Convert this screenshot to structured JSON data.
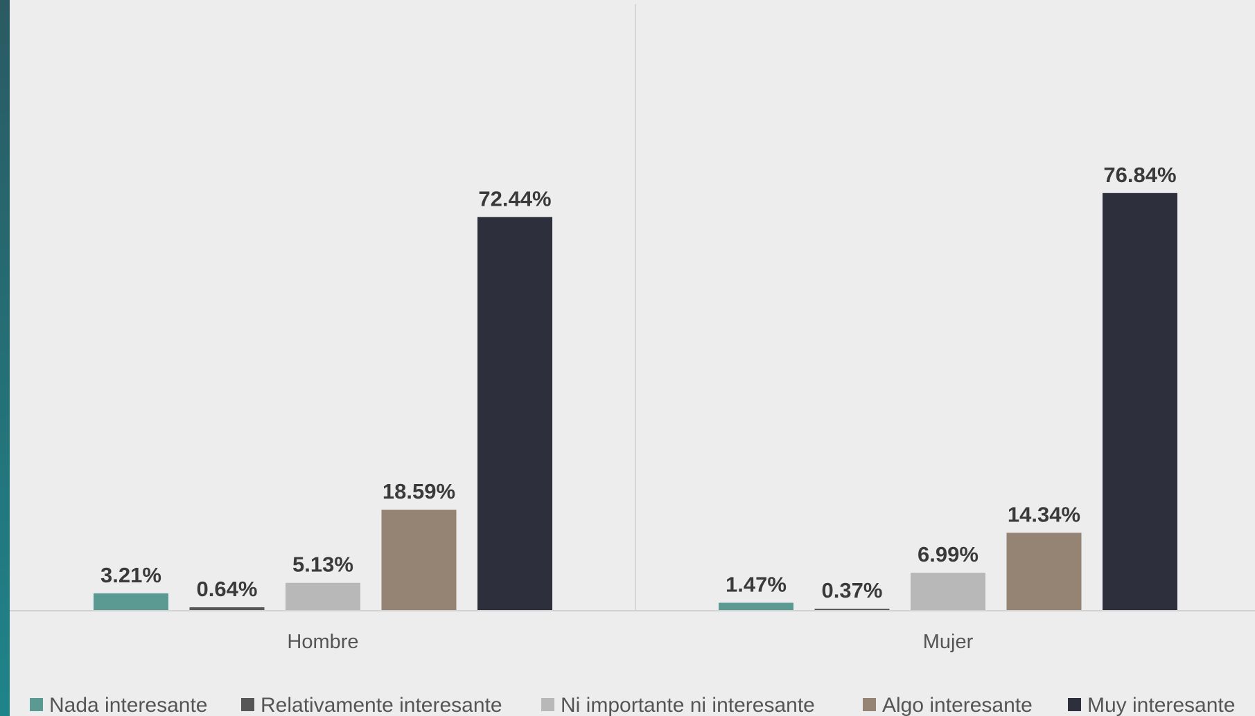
{
  "chart_data": {
    "type": "bar",
    "categories": [
      "Hombre",
      "Mujer"
    ],
    "series": [
      {
        "name": "Nada interesante",
        "color": "#5a9a93",
        "values": [
          3.21,
          1.47
        ],
        "labels": [
          "3.21%",
          "1.47%"
        ]
      },
      {
        "name": "Relativamente interesante",
        "color": "#575757",
        "values": [
          0.64,
          0.37
        ],
        "labels": [
          "0.64%",
          "0.37%"
        ]
      },
      {
        "name": "Ni importante ni interesante",
        "color": "#b8b8b8",
        "values": [
          5.13,
          6.99
        ],
        "labels": [
          "5.13%",
          "6.99%"
        ]
      },
      {
        "name": "Algo interesante",
        "color": "#958374",
        "values": [
          18.59,
          14.34
        ],
        "labels": [
          "18.59%",
          "14.34%"
        ]
      },
      {
        "name": "Muy interesante",
        "color": "#2e2f3c",
        "values": [
          72.44,
          76.84
        ],
        "labels": [
          "72.44%",
          "76.84%"
        ]
      }
    ],
    "title": "",
    "xlabel": "",
    "ylabel": "",
    "ylim": [
      0,
      90
    ],
    "grid": false,
    "legend_position": "bottom",
    "accent_colors": [
      "#2b5a62",
      "#1f848a"
    ]
  }
}
